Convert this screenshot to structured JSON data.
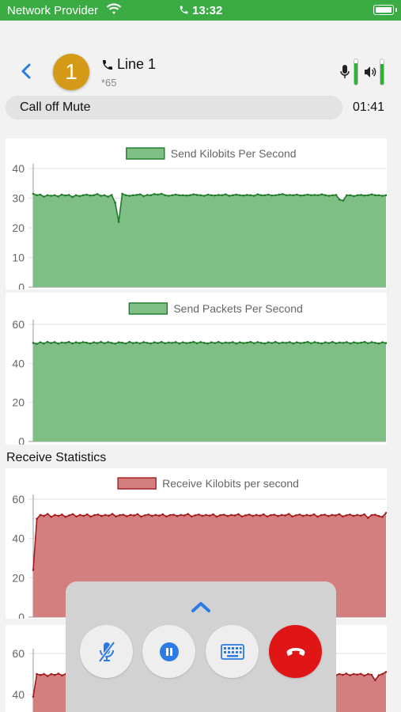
{
  "status_bar": {
    "carrier": "Network Provider",
    "time": "13:32"
  },
  "call": {
    "line_number": "1",
    "line_label": "Line 1",
    "line_sub": "*65",
    "mute_action": "Call off Mute",
    "duration": "01:41",
    "mic_level": 0.85,
    "speaker_level": 0.8
  },
  "section": {
    "receive_label": "Receive Statistics"
  },
  "colors": {
    "status_green": "#3aac43",
    "send_fill": "#7fbf85",
    "send_line": "#1f7a2a",
    "recv_fill": "#d47f7f",
    "recv_line": "#a31b1b",
    "badge": "#d59a18",
    "hangup": "#e01616",
    "accent_blue": "#2c7be5"
  },
  "controls": {
    "mute_icon": "mic-slash-icon",
    "hold_icon": "pause-icon",
    "keypad_icon": "keyboard-icon",
    "hangup_icon": "phone-down-icon",
    "collapse_icon": "chevron-up-icon"
  },
  "chart_data": [
    {
      "type": "area",
      "legend": "Send Kilobits Per Second",
      "ylim": [
        0,
        40
      ],
      "yticks": [
        0,
        10,
        20,
        30,
        40
      ],
      "values": [
        31.5,
        31,
        31.2,
        30.5,
        31,
        30.8,
        31,
        30.6,
        31.2,
        30.9,
        31.1,
        30.4,
        31,
        30.7,
        31,
        31.2,
        30.9,
        31,
        31.4,
        30.8,
        31,
        30.5,
        31.1,
        30.9,
        31,
        31.2,
        31,
        30.8,
        31,
        31.1,
        31.3,
        30.7,
        31.1,
        31,
        31.4,
        31.2,
        31.5,
        31,
        30.8,
        31,
        31.2,
        31,
        31,
        30.9,
        31,
        31.3,
        31.1,
        31,
        30.8,
        31.2,
        31,
        30.9,
        31.1,
        31,
        31.3,
        30.8,
        31,
        31.2,
        31,
        30.9,
        31.1,
        31,
        30.8,
        31.3,
        31,
        31,
        31.2,
        30.9,
        31,
        31.2,
        31.4,
        31,
        31.1,
        31,
        31.2,
        30.9,
        31,
        31.2,
        31,
        31.1,
        31,
        31.3,
        31,
        30.8,
        31,
        31.1,
        30.9,
        31,
        31.2,
        31,
        30.7,
        31,
        31.1,
        30.9,
        31,
        31.3,
        31,
        31,
        30.8,
        31
      ],
      "dips": [
        [
          23,
          28.5
        ],
        [
          24,
          22
        ],
        [
          25,
          31.5
        ],
        [
          86,
          29.5
        ],
        [
          87,
          29.2
        ],
        [
          88,
          31
        ]
      ]
    },
    {
      "type": "area",
      "legend": "Send Packets Per Second",
      "ylim": [
        0,
        60
      ],
      "yticks": [
        0,
        20,
        40,
        60
      ],
      "values": [
        50.5,
        50,
        50.8,
        50.2,
        51,
        50.4,
        50.9,
        50.1,
        50.7,
        50.5,
        51,
        50.2,
        50.8,
        50.4,
        50.9,
        50.6,
        50.2,
        50.8,
        50.4,
        51,
        50.3,
        50.9,
        50.5,
        50.1,
        50.8,
        50.6,
        50.2,
        51,
        50.4,
        50.7,
        50.3,
        50.9,
        50.5,
        50.2,
        50.8,
        50.4,
        51,
        50.3,
        50.7,
        50.5,
        50.9,
        50.2,
        50.8,
        50.4,
        50.6,
        51,
        50.3,
        50.9,
        50.5,
        50.2,
        50.8,
        50.4,
        51,
        50.3,
        50.7,
        50.5,
        50.9,
        50.2,
        50.8,
        50.4,
        50.6,
        51,
        50.3,
        50.9,
        50.5,
        50.2,
        50.8,
        50.4,
        51,
        50.3,
        50.7,
        50.5,
        50.9,
        50.2,
        50.8,
        50.4,
        50.6,
        51,
        50.3,
        50.9,
        50.5,
        50.2,
        50.8,
        50.4,
        51,
        50.3,
        50.7,
        50.5,
        50.9,
        50.2,
        50.8,
        50.4,
        50.6,
        51,
        50.3,
        50.9,
        50.5,
        50.2,
        50.8,
        50.4
      ]
    },
    {
      "type": "area",
      "legend": "Receive Kilobits per second",
      "ylim": [
        0,
        60
      ],
      "yticks": [
        0,
        20,
        40,
        60
      ],
      "values": [
        24,
        50,
        52,
        51.5,
        52.5,
        51,
        52,
        51.5,
        52.2,
        51,
        51.8,
        52.4,
        51.2,
        52,
        51.5,
        52.3,
        51.1,
        51.9,
        52.2,
        51.4,
        52,
        51.6,
        52.5,
        51.2,
        51.9,
        52.1,
        51.3,
        52,
        51.7,
        52.4,
        51.1,
        51.8,
        52.2,
        51.5,
        52,
        51.6,
        52.3,
        51.2,
        51.9,
        52.1,
        51.4,
        52,
        51.7,
        52.5,
        51.2,
        51.8,
        52.2,
        51.5,
        52,
        51.6,
        52.3,
        51.1,
        51.9,
        52.1,
        51.4,
        52,
        51.7,
        52.4,
        51.2,
        51.8,
        52.2,
        51.5,
        52,
        51.6,
        52.3,
        51.2,
        51.9,
        52.1,
        51.4,
        52,
        51.7,
        52.5,
        51.2,
        51.8,
        52.2,
        51.5,
        52,
        51.6,
        52.3,
        51.1,
        51.9,
        52.1,
        51.4,
        52,
        51.7,
        52.4,
        51.2,
        51.8,
        52.2,
        51.5,
        52,
        51.6,
        52.3,
        50.5,
        51.9,
        52.1,
        51.4,
        51,
        53
      ]
    },
    {
      "type": "area",
      "legend": "",
      "ylim": [
        20,
        60
      ],
      "yticks": [
        40,
        60
      ],
      "values": [
        39,
        50,
        49.5,
        50,
        49,
        50,
        49.5,
        50.2,
        49.3,
        50,
        49.7,
        50.1,
        49.2,
        50,
        49.6,
        50.2,
        49.4,
        50,
        49.8,
        50.1,
        49.3,
        50,
        49.6,
        50.2,
        49.4,
        50,
        49.7,
        50.1,
        49.2,
        50,
        49.6,
        50.2,
        49.4,
        50,
        49.8,
        50.1,
        49.3,
        50,
        49.6,
        50.2,
        49.4,
        50,
        49.7,
        50.1,
        49.2,
        50,
        49.6,
        50.2,
        49.4,
        50,
        49.8,
        50.1,
        49.3,
        50,
        49.6,
        50.2,
        49.4,
        50,
        49.7,
        50.1,
        49.2,
        50,
        49.6,
        50.2,
        49.4,
        50,
        49.8,
        50.1,
        49.3,
        50,
        49.6,
        50.2,
        49.4,
        50,
        49.7,
        50.1,
        49.2,
        50,
        49.6,
        50.2,
        49.4,
        50,
        49.8,
        50.1,
        49.3,
        50,
        49.6,
        50.2,
        49.4,
        50,
        49.7,
        50.1,
        49.2,
        50,
        49.6,
        47,
        49.4,
        50,
        51
      ]
    }
  ]
}
